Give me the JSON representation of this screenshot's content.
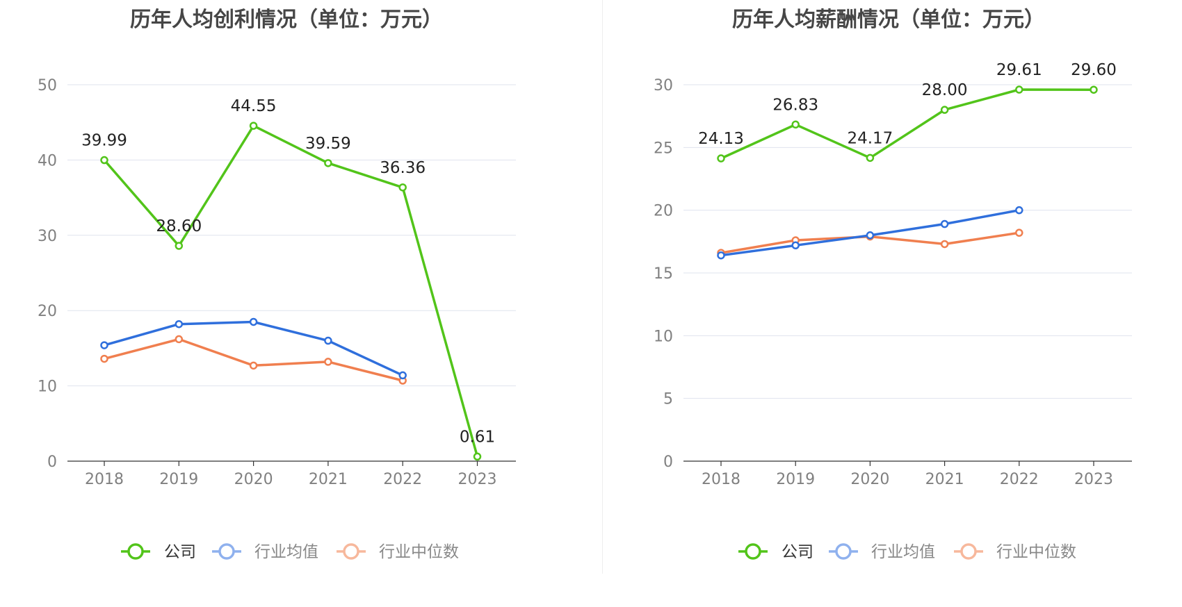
{
  "colors": {
    "company": "#52c41a",
    "industry_avg": "#2f6fdc",
    "industry_median": "#f07f4f",
    "legend_avg": "#8fb1ee",
    "legend_median": "#f7b89c",
    "grid": "#dfe3ee",
    "axis": "#333333",
    "tick_text": "#808080",
    "title_text": "#464646",
    "label_text": "#222222",
    "legend_text_active": "#333333",
    "legend_text_inactive": "#888888"
  },
  "chart_data": [
    {
      "type": "line",
      "title": "历年人均创利情况（单位：万元）",
      "categories": [
        "2018",
        "2019",
        "2020",
        "2021",
        "2022",
        "2023"
      ],
      "ylim": [
        0,
        50
      ],
      "yticks": [
        "0",
        "10",
        "20",
        "30",
        "40",
        "50"
      ],
      "grid": true,
      "legend_position": "bottom-center",
      "series": [
        {
          "name": "公司",
          "values": [
            39.99,
            28.6,
            44.55,
            39.59,
            36.36,
            0.61
          ],
          "labels": [
            "39.99",
            "28.60",
            "44.55",
            "39.59",
            "36.36",
            "0.61"
          ]
        },
        {
          "name": "行业均值",
          "values": [
            15.4,
            18.2,
            18.5,
            16.0,
            11.4,
            null
          ]
        },
        {
          "name": "行业中位数",
          "values": [
            13.6,
            16.2,
            12.7,
            13.2,
            10.7,
            null
          ]
        }
      ]
    },
    {
      "type": "line",
      "title": "历年人均薪酬情况（单位：万元）",
      "categories": [
        "2018",
        "2019",
        "2020",
        "2021",
        "2022",
        "2023"
      ],
      "ylim": [
        0,
        30
      ],
      "yticks": [
        "0",
        "5",
        "10",
        "15",
        "20",
        "25",
        "30"
      ],
      "grid": true,
      "legend_position": "bottom-center",
      "series": [
        {
          "name": "公司",
          "values": [
            24.13,
            26.83,
            24.17,
            28.0,
            29.61,
            29.6
          ],
          "labels": [
            "24.13",
            "26.83",
            "24.17",
            "28.00",
            "29.61",
            "29.60"
          ]
        },
        {
          "name": "行业均值",
          "values": [
            16.4,
            17.2,
            18.0,
            18.9,
            20.0,
            null
          ]
        },
        {
          "name": "行业中位数",
          "values": [
            16.6,
            17.6,
            17.9,
            17.3,
            18.2,
            null
          ]
        }
      ]
    }
  ]
}
